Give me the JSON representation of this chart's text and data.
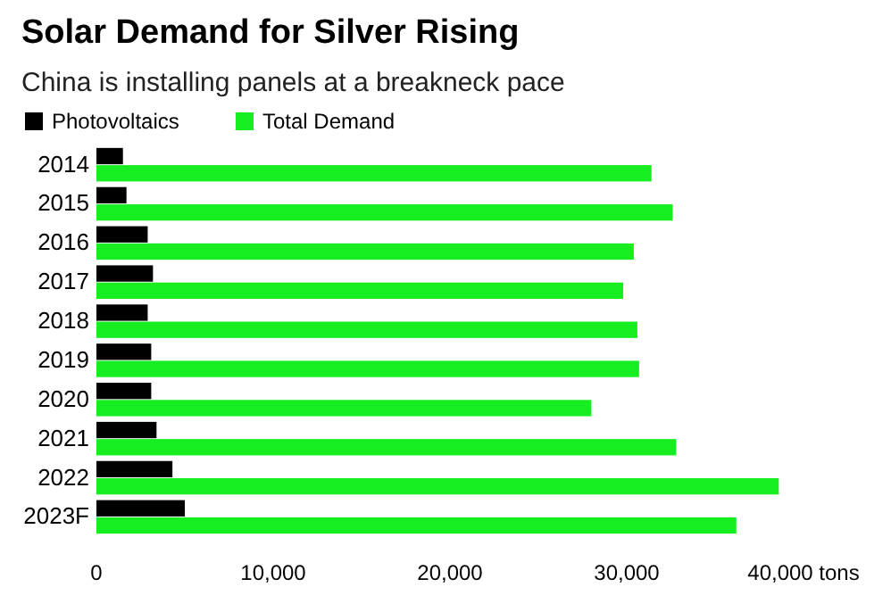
{
  "chart_data": {
    "type": "bar",
    "orientation": "horizontal",
    "title": "Solar Demand for Silver Rising",
    "subtitle": "China is installing panels at a breakneck pace",
    "categories": [
      "2014",
      "2015",
      "2016",
      "2017",
      "2018",
      "2019",
      "2020",
      "2021",
      "2022",
      "2023F"
    ],
    "series": [
      {
        "name": "Photovoltaics",
        "color": "#000000",
        "values": [
          1500,
          1700,
          2900,
          3200,
          2900,
          3100,
          3100,
          3400,
          4300,
          5000
        ]
      },
      {
        "name": "Total Demand",
        "color": "#16ee22",
        "values": [
          31400,
          32600,
          30400,
          29800,
          30600,
          30700,
          28000,
          32800,
          38600,
          36200
        ]
      }
    ],
    "xlim": [
      0,
      40000
    ],
    "xticks": [
      0,
      {
        "value": 10000,
        "label": "10,000"
      },
      {
        "value": 20000,
        "label": "20,000"
      },
      {
        "value": 30000,
        "label": "30,000"
      },
      {
        "value": 40000,
        "label": "40,000 tons"
      }
    ],
    "legend": "top left",
    "grid": false
  }
}
